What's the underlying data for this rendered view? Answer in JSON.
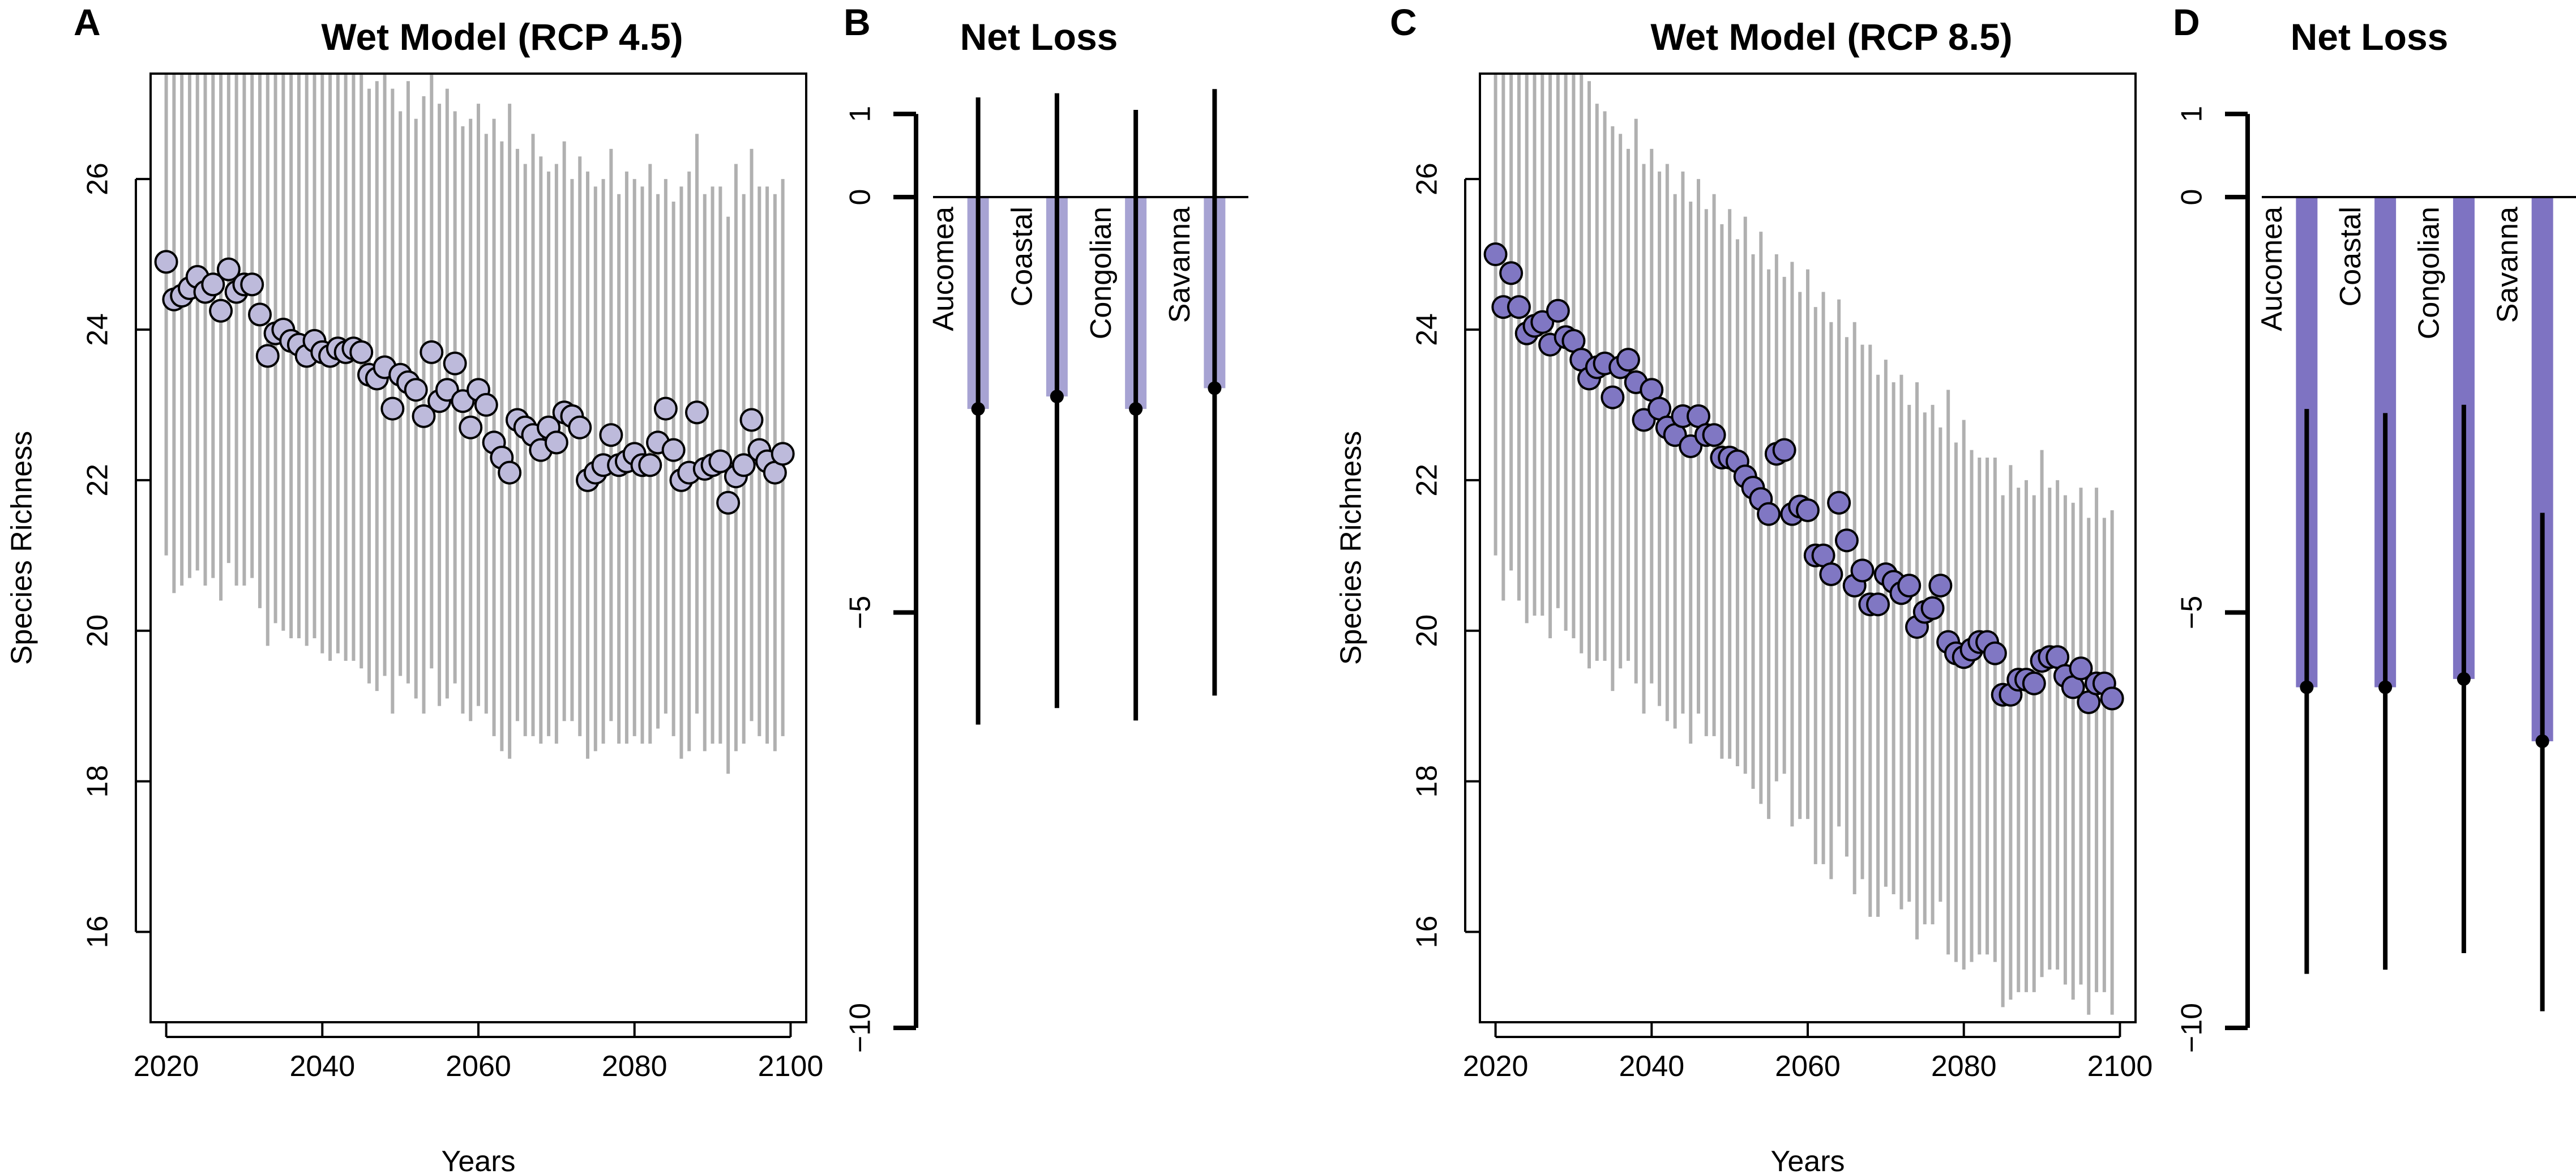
{
  "figure": {
    "panel_letters": [
      "A",
      "B",
      "C",
      "D"
    ]
  },
  "colors": {
    "light_fill": "#BDBADB",
    "dark_fill": "#8077C3",
    "range_gray": "#B0B0B0",
    "bar_light": "#A7A3D3",
    "bar_dark": "#7E73C2"
  },
  "chart_data": [
    {
      "panel": "A",
      "type": "scatter",
      "title": "Wet Model (RCP 4.5)",
      "xlabel": "Years",
      "ylabel": "Species Richness",
      "xlim": [
        2018,
        2102
      ],
      "ylim": [
        14.8,
        27.4
      ],
      "xticks": [
        2020,
        2040,
        2060,
        2080,
        2100
      ],
      "yticks": [
        16,
        18,
        20,
        22,
        24,
        26
      ],
      "x": [
        2020,
        2021,
        2022,
        2023,
        2024,
        2025,
        2026,
        2027,
        2028,
        2029,
        2030,
        2031,
        2032,
        2033,
        2034,
        2035,
        2036,
        2037,
        2038,
        2039,
        2040,
        2041,
        2042,
        2043,
        2044,
        2045,
        2046,
        2047,
        2048,
        2049,
        2050,
        2051,
        2052,
        2053,
        2054,
        2055,
        2056,
        2057,
        2058,
        2059,
        2060,
        2061,
        2062,
        2063,
        2064,
        2065,
        2066,
        2067,
        2068,
        2069,
        2070,
        2071,
        2072,
        2073,
        2074,
        2075,
        2076,
        2077,
        2078,
        2079,
        2080,
        2081,
        2082,
        2083,
        2084,
        2085,
        2086,
        2087,
        2088,
        2089,
        2090,
        2091,
        2092,
        2093,
        2094,
        2095,
        2096,
        2097,
        2098,
        2099
      ],
      "y": [
        24.9,
        24.4,
        24.45,
        24.55,
        24.7,
        24.5,
        24.6,
        24.25,
        24.8,
        24.5,
        24.6,
        24.6,
        24.2,
        23.65,
        23.95,
        24.0,
        23.85,
        23.8,
        23.65,
        23.85,
        23.7,
        23.65,
        23.75,
        23.7,
        23.75,
        23.7,
        23.4,
        23.35,
        23.5,
        22.95,
        23.4,
        23.3,
        23.2,
        22.85,
        23.7,
        23.05,
        23.2,
        23.55,
        23.05,
        22.7,
        23.2,
        23.0,
        22.5,
        22.3,
        22.1,
        22.8,
        22.7,
        22.6,
        22.4,
        22.7,
        22.5,
        22.9,
        22.85,
        22.7,
        22.0,
        22.1,
        22.2,
        22.6,
        22.2,
        22.25,
        22.35,
        22.2,
        22.2,
        22.5,
        22.95,
        22.4,
        22.0,
        22.1,
        22.9,
        22.15,
        22.2,
        22.25,
        21.7,
        22.05,
        22.2,
        22.8,
        22.4,
        22.25,
        22.1,
        22.35
      ],
      "upper": [
        27.4,
        27.4,
        27.4,
        27.4,
        27.4,
        27.4,
        27.4,
        27.4,
        27.4,
        27.4,
        27.4,
        27.4,
        27.4,
        27.4,
        27.4,
        27.4,
        27.4,
        27.4,
        27.4,
        27.4,
        27.4,
        27.4,
        27.4,
        27.4,
        27.4,
        27.4,
        27.2,
        27.3,
        27.4,
        27.2,
        26.9,
        27.3,
        26.8,
        27.1,
        27.4,
        27.0,
        27.2,
        26.9,
        26.7,
        26.8,
        27.0,
        26.6,
        26.8,
        26.5,
        27.0,
        26.4,
        26.2,
        26.6,
        26.3,
        26.1,
        26.2,
        26.5,
        26.0,
        26.3,
        26.1,
        25.9,
        26.0,
        26.4,
        25.8,
        26.1,
        26.0,
        25.9,
        26.2,
        25.8,
        26.0,
        25.7,
        25.9,
        26.1,
        26.6,
        25.8,
        25.9,
        25.9,
        25.5,
        26.2,
        25.8,
        26.4,
        25.9,
        25.9,
        25.8,
        26.0
      ],
      "lower": [
        21.0,
        20.5,
        20.6,
        20.7,
        20.8,
        20.6,
        20.7,
        20.4,
        20.9,
        20.6,
        20.6,
        20.7,
        20.3,
        19.8,
        20.1,
        20.0,
        19.9,
        19.9,
        19.8,
        19.9,
        19.7,
        19.6,
        19.7,
        19.6,
        19.6,
        19.5,
        19.3,
        19.2,
        19.4,
        18.9,
        19.4,
        19.3,
        19.1,
        18.9,
        19.5,
        19.0,
        19.1,
        19.3,
        18.9,
        18.8,
        19.0,
        18.9,
        18.6,
        18.4,
        18.3,
        18.8,
        18.6,
        18.6,
        18.5,
        18.6,
        18.5,
        18.8,
        18.8,
        18.6,
        18.3,
        18.4,
        18.5,
        18.8,
        18.5,
        18.5,
        18.6,
        18.5,
        18.5,
        18.7,
        18.9,
        18.6,
        18.3,
        18.4,
        18.9,
        18.4,
        18.5,
        18.5,
        18.1,
        18.4,
        18.5,
        18.8,
        18.6,
        18.5,
        18.4,
        18.6
      ]
    },
    {
      "panel": "B",
      "type": "bar",
      "title": "Net Loss",
      "ylim": [
        -10,
        1
      ],
      "yticks": [
        1,
        0,
        -5,
        -10
      ],
      "ytick_labels": [
        "1",
        "0",
        "−5",
        "−10"
      ],
      "categories": [
        "Aucomea",
        "Coastal",
        "Congolian",
        "Savanna"
      ],
      "values": [
        -2.55,
        -2.4,
        -2.55,
        -2.3
      ],
      "upper": [
        1.2,
        1.25,
        1.05,
        1.3
      ],
      "lower": [
        -6.35,
        -6.15,
        -6.3,
        -6.0
      ]
    },
    {
      "panel": "C",
      "type": "scatter",
      "title": "Wet Model (RCP 8.5)",
      "xlabel": "Years",
      "ylabel": "Species Richness",
      "xlim": [
        2018,
        2102
      ],
      "ylim": [
        14.8,
        27.4
      ],
      "xticks": [
        2020,
        2040,
        2060,
        2080,
        2100
      ],
      "yticks": [
        16,
        18,
        20,
        22,
        24,
        26
      ],
      "x": [
        2020,
        2021,
        2022,
        2023,
        2024,
        2025,
        2026,
        2027,
        2028,
        2029,
        2030,
        2031,
        2032,
        2033,
        2034,
        2035,
        2036,
        2037,
        2038,
        2039,
        2040,
        2041,
        2042,
        2043,
        2044,
        2045,
        2046,
        2047,
        2048,
        2049,
        2050,
        2051,
        2052,
        2053,
        2054,
        2055,
        2056,
        2057,
        2058,
        2059,
        2060,
        2061,
        2062,
        2063,
        2064,
        2065,
        2066,
        2067,
        2068,
        2069,
        2070,
        2071,
        2072,
        2073,
        2074,
        2075,
        2076,
        2077,
        2078,
        2079,
        2080,
        2081,
        2082,
        2083,
        2084,
        2085,
        2086,
        2087,
        2088,
        2089,
        2090,
        2091,
        2092,
        2093,
        2094,
        2095,
        2096,
        2097,
        2098,
        2099
      ],
      "y": [
        25.0,
        24.3,
        24.75,
        24.3,
        23.95,
        24.05,
        24.1,
        23.8,
        24.25,
        23.9,
        23.85,
        23.6,
        23.35,
        23.5,
        23.55,
        23.1,
        23.5,
        23.6,
        23.3,
        22.8,
        23.2,
        22.95,
        22.7,
        22.6,
        22.85,
        22.45,
        22.85,
        22.6,
        22.6,
        22.3,
        22.3,
        22.25,
        22.05,
        21.9,
        21.75,
        21.55,
        22.35,
        22.4,
        21.55,
        21.65,
        21.6,
        21.0,
        21.0,
        20.75,
        21.7,
        21.2,
        20.6,
        20.8,
        20.35,
        20.35,
        20.75,
        20.65,
        20.5,
        20.6,
        20.05,
        20.25,
        20.3,
        20.6,
        19.85,
        19.7,
        19.65,
        19.75,
        19.85,
        19.85,
        19.7,
        19.15,
        19.15,
        19.35,
        19.35,
        19.3,
        19.6,
        19.65,
        19.65,
        19.4,
        19.25,
        19.5,
        19.05,
        19.3,
        19.3,
        19.1
      ],
      "upper": [
        27.4,
        27.4,
        27.4,
        27.4,
        27.4,
        27.4,
        27.4,
        27.4,
        27.4,
        27.4,
        27.4,
        27.4,
        27.3,
        27.0,
        26.9,
        26.7,
        26.6,
        26.4,
        26.8,
        26.2,
        26.4,
        26.1,
        26.2,
        25.8,
        26.1,
        25.7,
        26.0,
        25.6,
        25.8,
        25.4,
        25.6,
        25.2,
        25.5,
        25.0,
        25.3,
        24.8,
        25.0,
        24.7,
        24.9,
        24.5,
        24.8,
        24.3,
        24.5,
        24.1,
        24.4,
        23.9,
        24.1,
        23.8,
        23.8,
        23.4,
        23.6,
        23.3,
        23.4,
        23.0,
        23.3,
        22.9,
        23.0,
        22.7,
        23.2,
        22.5,
        22.8,
        22.4,
        22.3,
        22.3,
        22.3,
        21.8,
        22.2,
        21.9,
        22.0,
        21.8,
        22.4,
        21.9,
        22.0,
        21.8,
        21.7,
        21.9,
        21.5,
        21.9,
        21.5,
        21.6
      ],
      "lower": [
        21.0,
        20.4,
        20.8,
        20.4,
        20.1,
        20.2,
        20.2,
        19.9,
        20.3,
        20.0,
        19.9,
        19.7,
        19.5,
        19.6,
        19.6,
        19.2,
        19.5,
        19.6,
        19.3,
        18.9,
        19.3,
        19.0,
        18.8,
        18.7,
        18.9,
        18.5,
        18.9,
        18.6,
        18.6,
        18.3,
        18.3,
        18.2,
        18.1,
        17.9,
        17.7,
        17.5,
        18.0,
        18.1,
        17.4,
        17.5,
        17.5,
        16.9,
        16.9,
        16.7,
        17.4,
        17.0,
        16.5,
        16.7,
        16.2,
        16.2,
        16.6,
        16.5,
        16.3,
        16.4,
        15.9,
        16.1,
        16.1,
        16.4,
        15.7,
        15.6,
        15.5,
        15.6,
        15.7,
        15.7,
        15.6,
        15.0,
        15.1,
        15.2,
        15.2,
        15.2,
        15.4,
        15.5,
        15.5,
        15.3,
        15.1,
        15.3,
        14.9,
        15.2,
        15.2,
        14.9
      ]
    },
    {
      "panel": "D",
      "type": "bar",
      "title": "Net Loss",
      "ylim": [
        -10,
        1
      ],
      "yticks": [
        1,
        0,
        -5,
        -10
      ],
      "ytick_labels": [
        "1",
        "0",
        "−5",
        "−10"
      ],
      "categories": [
        "Aucomea",
        "Coastal",
        "Congolian",
        "Savanna"
      ],
      "values": [
        -5.9,
        -5.9,
        -5.8,
        -6.55
      ],
      "upper": [
        -2.55,
        -2.6,
        -2.5,
        -3.8
      ],
      "lower": [
        -9.35,
        -9.3,
        -9.1,
        -9.8
      ]
    }
  ]
}
